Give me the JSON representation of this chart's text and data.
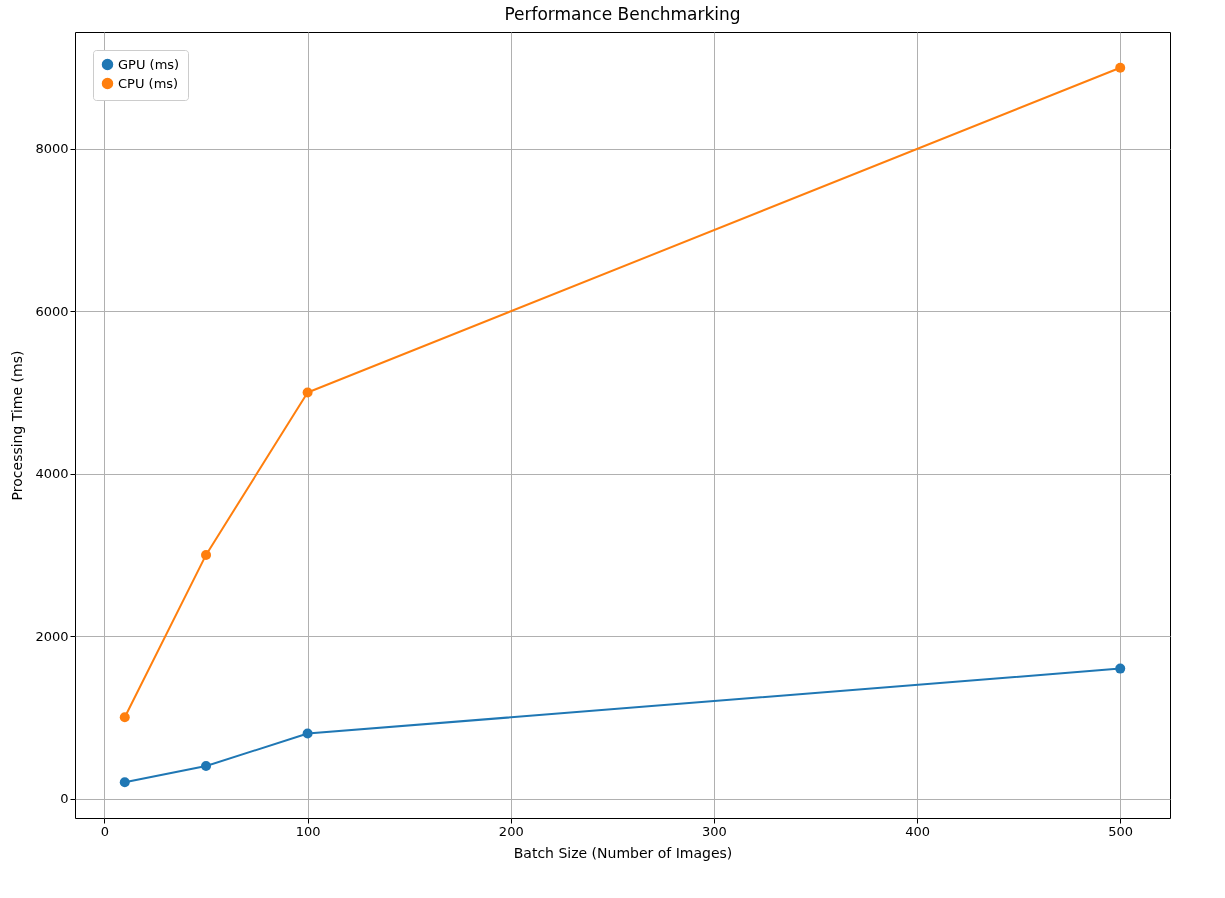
{
  "chart_data": {
    "type": "line",
    "title": "Performance Benchmarking",
    "xlabel": "Batch Size (Number of Images)",
    "ylabel": "Processing Time (ms)",
    "x": [
      10,
      50,
      100,
      500
    ],
    "series": [
      {
        "name": "GPU (ms)",
        "color": "#1f77b4",
        "values": [
          200,
          400,
          800,
          1600
        ]
      },
      {
        "name": "CPU (ms)",
        "color": "#ff7f0e",
        "values": [
          1000,
          3000,
          5000,
          9000
        ]
      }
    ],
    "xlim": [
      -14.5,
      524.5
    ],
    "xticks": [
      0,
      100,
      200,
      300,
      400,
      500
    ],
    "ylim": [
      -240,
      9440
    ],
    "yticks": [
      0,
      2000,
      4000,
      6000,
      8000
    ],
    "grid": true,
    "legend": "top left",
    "marker": "circle",
    "line_style": "solid"
  }
}
